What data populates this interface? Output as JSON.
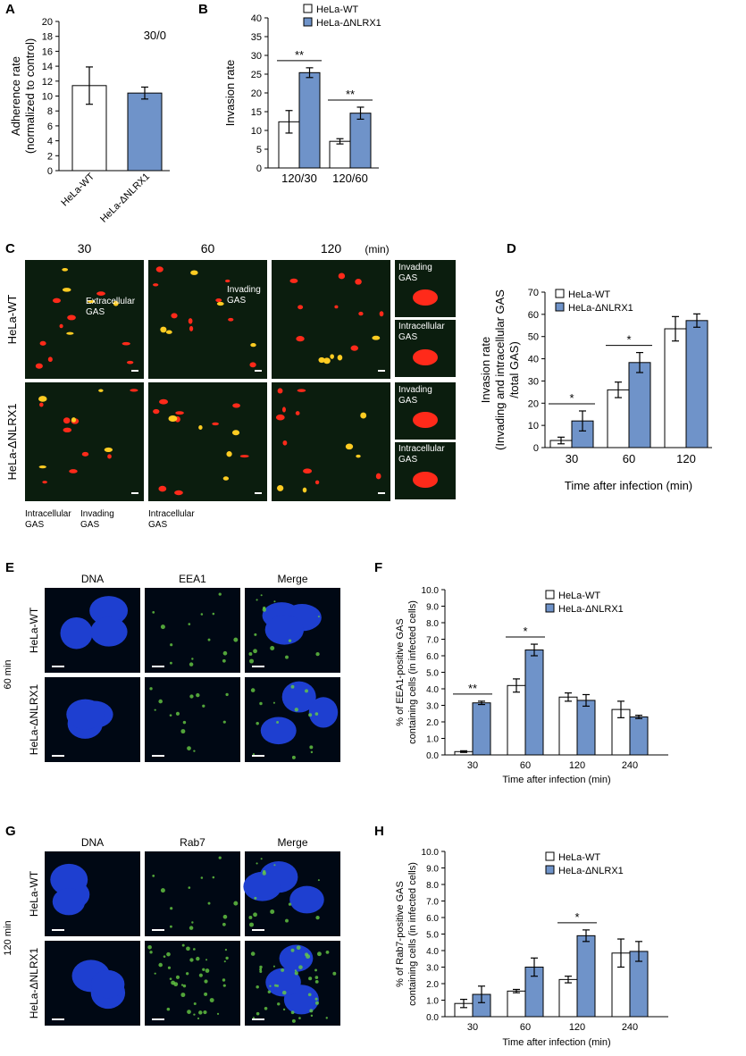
{
  "colors": {
    "wt": "#ffffff",
    "ko": "#6f93c9",
    "stroke": "#000000",
    "microBg": "#0b1d0e",
    "dnaBg": "#000814",
    "nucleus": "#1e3fd0",
    "gfp": "#66cc44",
    "gas": "#ff2a1a"
  },
  "panel_letters": [
    "A",
    "B",
    "C",
    "D",
    "E",
    "F",
    "G",
    "H"
  ],
  "micro_C": {
    "times": [
      "30",
      "60",
      "120"
    ],
    "unit": "(min)",
    "rows": [
      "HeLa-WT",
      "HeLa-ΔNLRX1"
    ],
    "insets": [
      "Invading GAS",
      "Intracellular GAS",
      "Invading GAS",
      "Intracellular GAS"
    ],
    "annotations": [
      "Extracellular GAS",
      "Invading GAS",
      "Intracellular GAS",
      "Invading GAS",
      "Intracellular GAS"
    ]
  },
  "micro_E": {
    "cols": [
      "DNA",
      "EEA1",
      "Merge"
    ],
    "rows": [
      "HeLa-WT",
      "HeLa-ΔNLRX1"
    ],
    "time": "60 min"
  },
  "micro_G": {
    "cols": [
      "DNA",
      "Rab7",
      "Merge"
    ],
    "rows": [
      "HeLa-WT",
      "HeLa-ΔNLRX1"
    ],
    "time": "120 min"
  },
  "chart_data": [
    {
      "panel": "A",
      "type": "bar",
      "categories": [
        "HeLa-WT",
        "HeLa-ΔNLRX1"
      ],
      "values": [
        11.4,
        10.4
      ],
      "errors": [
        2.5,
        0.8
      ],
      "ylabel": "Adherence rate (normalized to control)",
      "ylim": [
        0,
        20
      ],
      "yticks": [
        0,
        2,
        4,
        6,
        8,
        10,
        12,
        14,
        16,
        18,
        20
      ],
      "annotation": "30/0"
    },
    {
      "panel": "B",
      "type": "bar",
      "categories": [
        "120/30",
        "120/60"
      ],
      "series": [
        {
          "name": "HeLa-WT",
          "values": [
            12.3,
            7.1
          ],
          "errors": [
            3.0,
            0.7
          ]
        },
        {
          "name": "HeLa-ΔNLRX1",
          "values": [
            25.4,
            14.6
          ],
          "errors": [
            1.3,
            1.6
          ]
        }
      ],
      "ylabel": "Invasion rate",
      "ylim": [
        0,
        40
      ],
      "yticks": [
        0,
        5,
        10,
        15,
        20,
        25,
        30,
        35,
        40
      ],
      "significance": [
        "**",
        "**"
      ]
    },
    {
      "panel": "D",
      "type": "bar",
      "categories": [
        "30",
        "60",
        "120"
      ],
      "series": [
        {
          "name": "HeLa-WT",
          "values": [
            3.2,
            26.0,
            53.5
          ],
          "errors": [
            1.5,
            3.5,
            5.5
          ]
        },
        {
          "name": "HeLa-ΔNLRX1",
          "values": [
            12.0,
            38.3,
            57.2
          ],
          "errors": [
            4.5,
            4.5,
            3.0
          ]
        }
      ],
      "ylabel": "Invasion rate (Invading and intracellular GAS /total GAS)",
      "xlabel": "Time after infection (min)",
      "ylim": [
        0,
        70
      ],
      "yticks": [
        0,
        10,
        20,
        30,
        40,
        50,
        60,
        70
      ],
      "significance": [
        "*",
        "*",
        ""
      ]
    },
    {
      "panel": "F",
      "type": "bar",
      "categories": [
        "30",
        "60",
        "120",
        "240"
      ],
      "series": [
        {
          "name": "HeLa-WT",
          "values": [
            0.2,
            4.2,
            3.5,
            2.75
          ],
          "errors": [
            0.05,
            0.4,
            0.25,
            0.5
          ]
        },
        {
          "name": "HeLa-ΔNLRX1",
          "values": [
            3.15,
            6.35,
            3.3,
            2.3
          ],
          "errors": [
            0.1,
            0.35,
            0.35,
            0.1
          ]
        }
      ],
      "ylabel": "% of EEA1-positive GAS containing cells (in infected cells)",
      "xlabel": "Time after infection (min)",
      "ylim": [
        0,
        10
      ],
      "yticks": [
        "0.0",
        "1.0",
        "2.0",
        "3.0",
        "4.0",
        "5.0",
        "6.0",
        "7.0",
        "8.0",
        "9.0",
        "10.0"
      ],
      "significance": [
        "**",
        "*",
        "",
        ""
      ]
    },
    {
      "panel": "H",
      "type": "bar",
      "categories": [
        "30",
        "60",
        "120",
        "240"
      ],
      "series": [
        {
          "name": "HeLa-WT",
          "values": [
            0.8,
            1.55,
            2.25,
            3.85
          ],
          "errors": [
            0.25,
            0.1,
            0.2,
            0.85
          ]
        },
        {
          "name": "HeLa-ΔNLRX1",
          "values": [
            1.35,
            3.0,
            4.9,
            3.95
          ],
          "errors": [
            0.5,
            0.55,
            0.35,
            0.6
          ]
        }
      ],
      "ylabel": "% of Rab7-positive GAS containing cells (in infected cells)",
      "xlabel": "Time after infection (min)",
      "ylim": [
        0,
        10
      ],
      "yticks": [
        "0.0",
        "1.0",
        "2.0",
        "3.0",
        "4.0",
        "5.0",
        "6.0",
        "7.0",
        "8.0",
        "9.0",
        "10.0"
      ],
      "significance": [
        "",
        "",
        "*",
        ""
      ]
    }
  ]
}
